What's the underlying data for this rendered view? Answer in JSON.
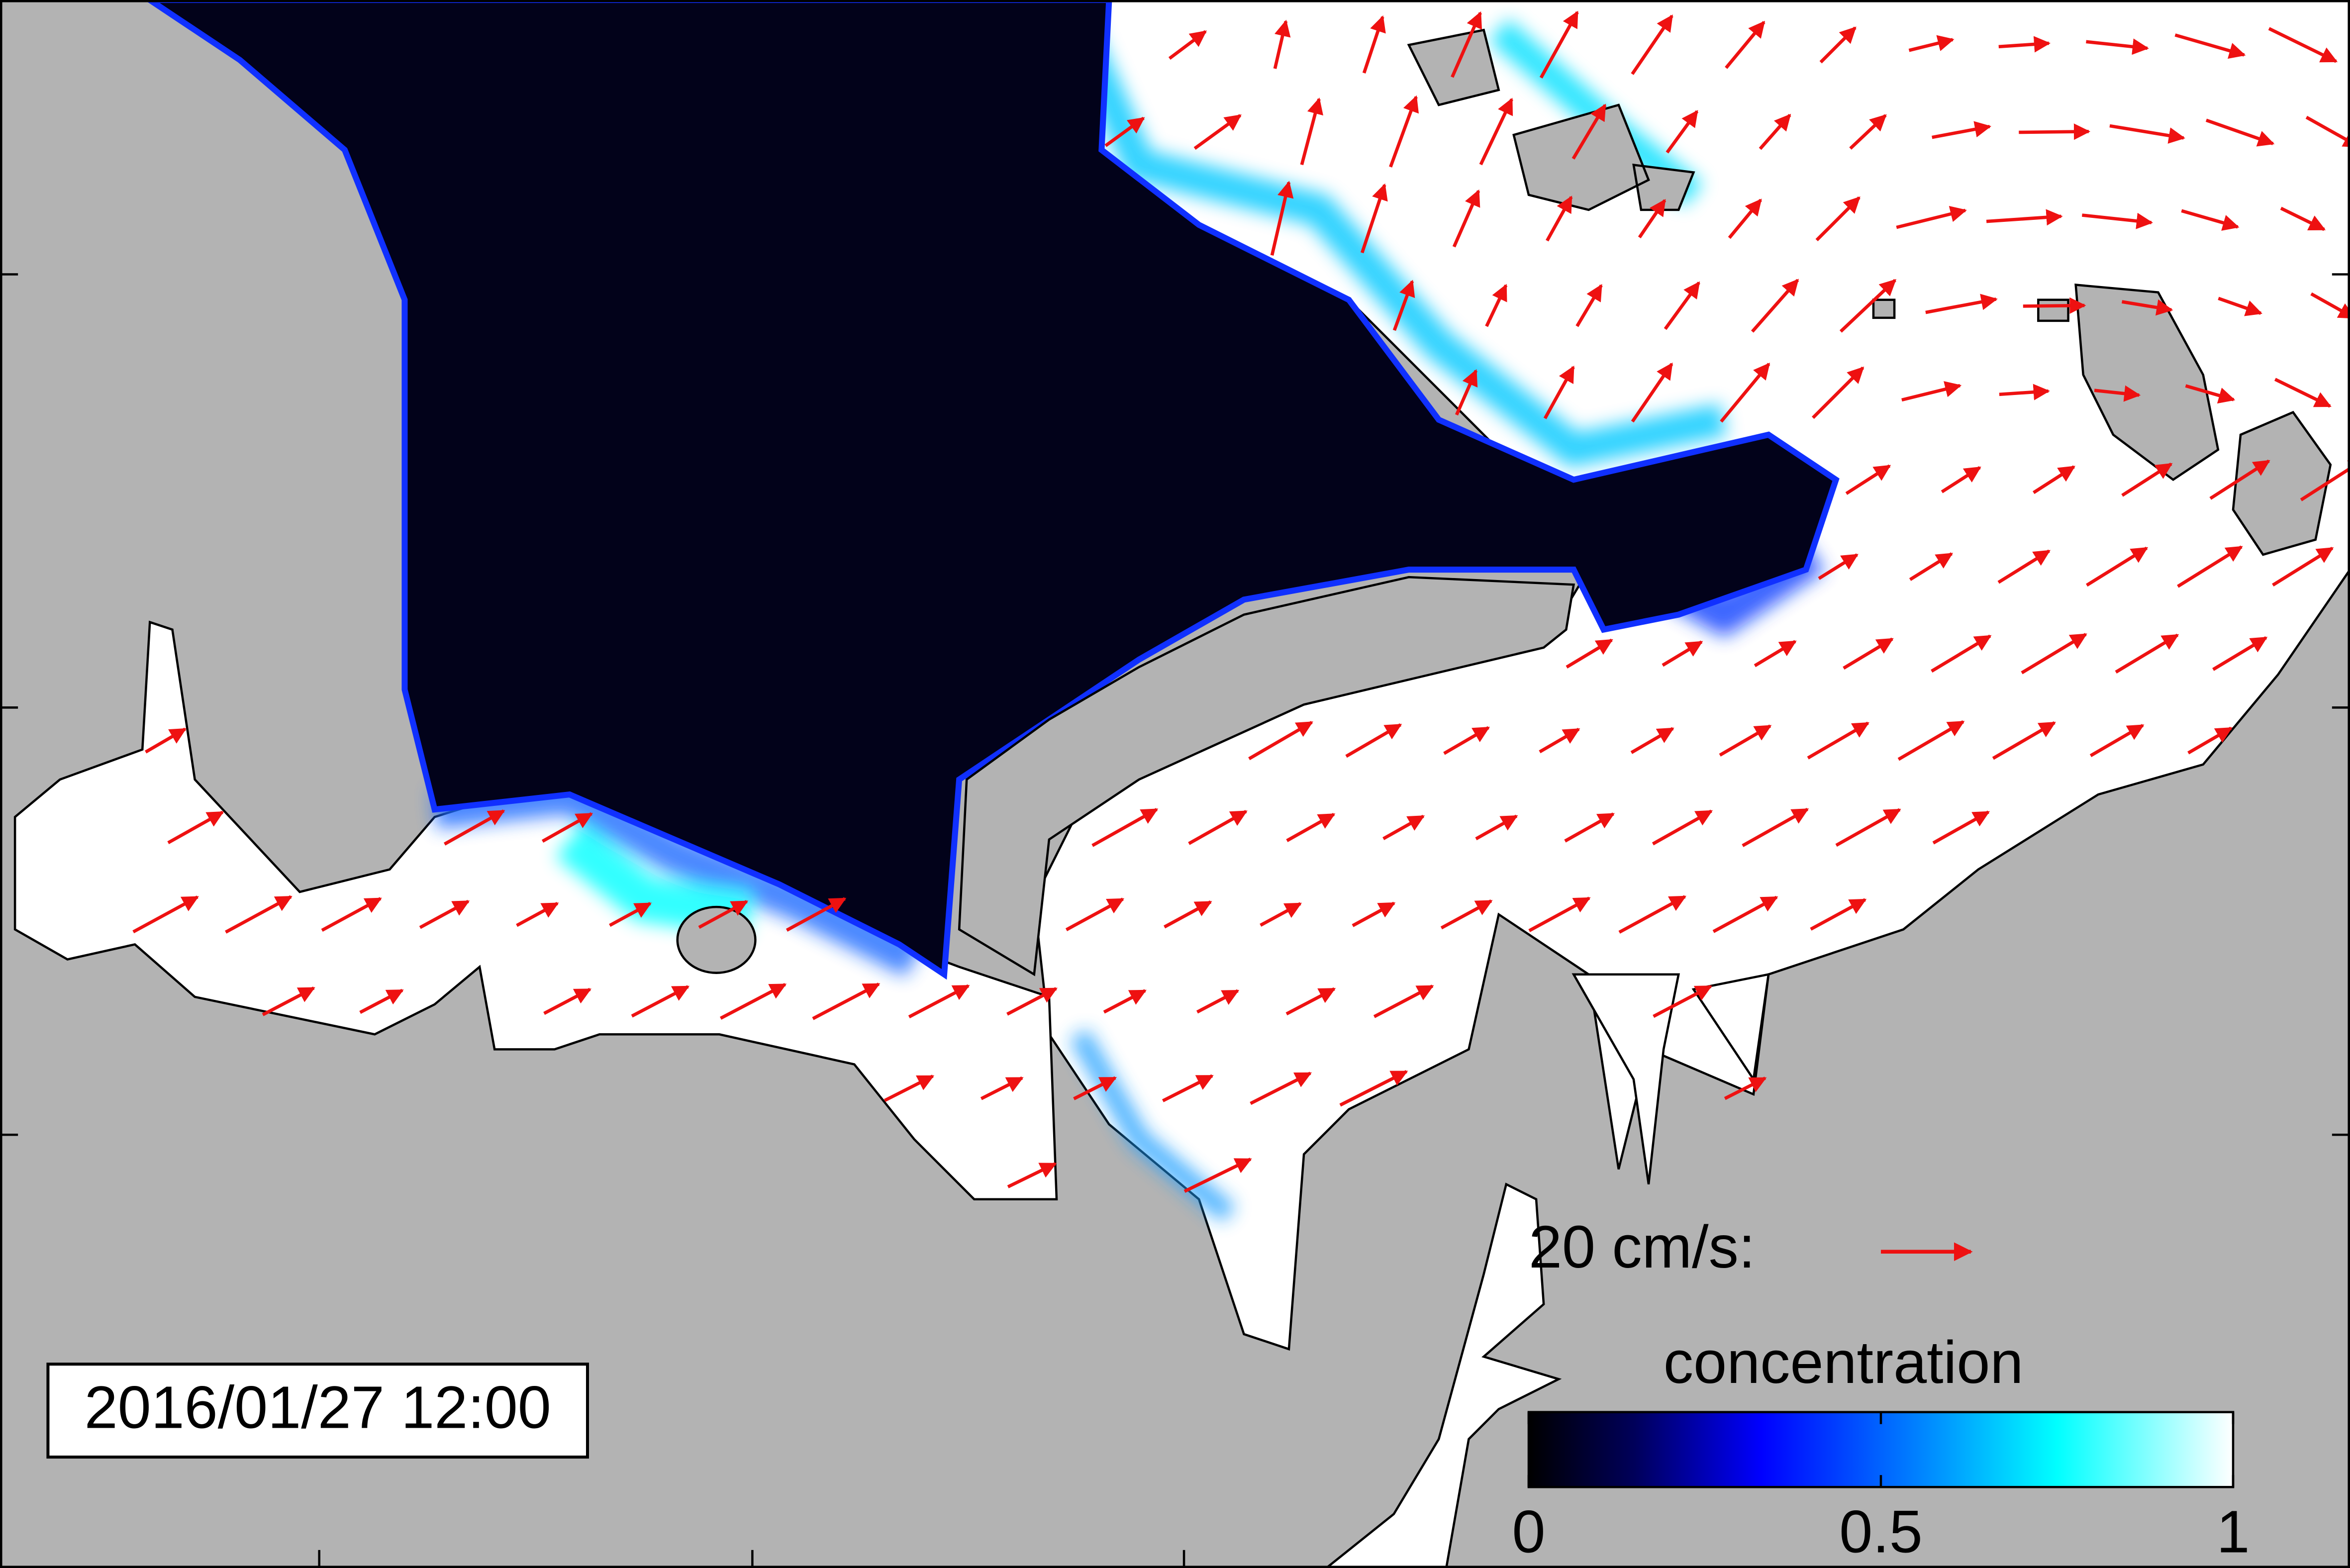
{
  "timestamp": "2016/01/27 12:00",
  "scale_label": "20 cm/s:",
  "colorbar": {
    "title": "concentration",
    "range": [
      0,
      1
    ],
    "ticks": [
      0,
      0.5,
      1
    ]
  }
}
